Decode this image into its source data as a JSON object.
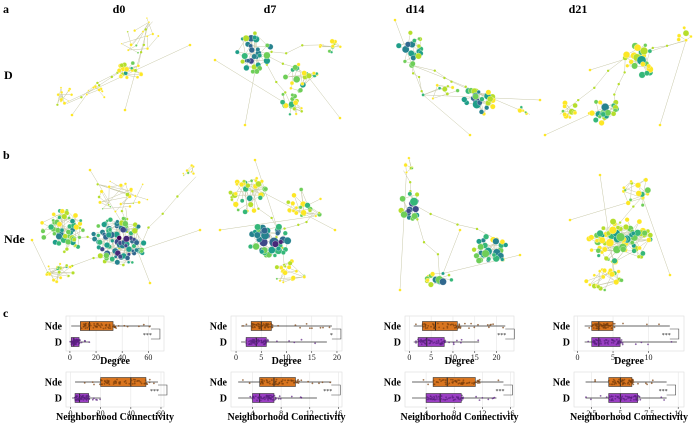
{
  "panels": {
    "a": "a",
    "b": "b",
    "c": "c"
  },
  "columns": [
    "d0",
    "d7",
    "d14",
    "d21"
  ],
  "rows": {
    "network_top": "D",
    "network_bottom": "Nde"
  },
  "box_groups": [
    "Nde",
    "D"
  ],
  "colors": {
    "nde_box": "#d9751f",
    "d_box": "#9b3fc4",
    "nde_point": "#7a3e0c",
    "d_point": "#5a1f80",
    "node_palette": [
      "#fde725",
      "#b5de2b",
      "#6ece58",
      "#35b779",
      "#1f9e89",
      "#26828e",
      "#31688e",
      "#3e4989",
      "#482878",
      "#440154"
    ],
    "edge": "#c8c8a8"
  },
  "chart_data": [
    {
      "type": "box",
      "column": "d0",
      "metric": "Degree",
      "xlabel": "Degree",
      "ticks": [
        0,
        20,
        40,
        60
      ],
      "xlim": [
        -3,
        72
      ],
      "series": [
        {
          "name": "Nde",
          "q1": 8,
          "median": 15,
          "q3": 33,
          "whisker_low": 1,
          "whisker_high": 62
        },
        {
          "name": "D",
          "q1": 1,
          "median": 3,
          "q3": 7,
          "whisker_low": 0,
          "whisker_high": 15
        }
      ],
      "significance": "***"
    },
    {
      "type": "box",
      "column": "d7",
      "metric": "Degree",
      "xlabel": "Degree",
      "ticks": [
        0,
        5,
        10,
        15,
        20
      ],
      "xlim": [
        -1,
        21
      ],
      "series": [
        {
          "name": "Nde",
          "q1": 3,
          "median": 5,
          "q3": 7,
          "whisker_low": 1,
          "whisker_high": 19
        },
        {
          "name": "D",
          "q1": 2,
          "median": 4,
          "q3": 6,
          "whisker_low": 1,
          "whisker_high": 18
        }
      ],
      "significance": "*"
    },
    {
      "type": "box",
      "column": "d14",
      "metric": "Degree",
      "xlabel": "Degree",
      "ticks": [
        0,
        5,
        10,
        15,
        20
      ],
      "xlim": [
        -1,
        24
      ],
      "series": [
        {
          "name": "Nde",
          "q1": 3,
          "median": 6,
          "q3": 11,
          "whisker_low": 1,
          "whisker_high": 22
        },
        {
          "name": "D",
          "q1": 2,
          "median": 4,
          "q3": 8,
          "whisker_low": 1,
          "whisker_high": 16
        }
      ],
      "significance": "***"
    },
    {
      "type": "box",
      "column": "d21",
      "metric": "Degree",
      "xlabel": "Degree",
      "ticks": [
        0,
        5,
        10
      ],
      "xlim": [
        -0.5,
        15
      ],
      "series": [
        {
          "name": "Nde",
          "q1": 2,
          "median": 3,
          "q3": 5,
          "whisker_low": 1,
          "whisker_high": 13
        },
        {
          "name": "D",
          "q1": 2,
          "median": 3,
          "q3": 6,
          "whisker_low": 1,
          "whisker_high": 14
        }
      ],
      "significance": "***"
    },
    {
      "type": "box",
      "column": "d0",
      "metric": "Neighborhood Connectivity",
      "xlabel": "Neighborhood Connectivity",
      "ticks": [
        0,
        20,
        40,
        60
      ],
      "xlim": [
        -3,
        62
      ],
      "series": [
        {
          "name": "Nde",
          "q1": 20,
          "median": 40,
          "q3": 50,
          "whisker_low": 3,
          "whisker_high": 58
        },
        {
          "name": "D",
          "q1": 3,
          "median": 6,
          "q3": 12,
          "whisker_low": 1,
          "whisker_high": 20
        }
      ],
      "significance": "***"
    },
    {
      "type": "box",
      "column": "d7",
      "metric": "Neighborhood Connectivity",
      "xlabel": "Neighborhood Connectivity",
      "ticks": [
        4,
        8,
        12,
        16
      ],
      "xlim": [
        1,
        16.5
      ],
      "series": [
        {
          "name": "Nde",
          "q1": 5,
          "median": 7,
          "q3": 10,
          "whisker_low": 2,
          "whisker_high": 15
        },
        {
          "name": "D",
          "q1": 4,
          "median": 5,
          "q3": 7,
          "whisker_low": 2,
          "whisker_high": 13
        }
      ],
      "significance": "***"
    },
    {
      "type": "box",
      "column": "d14",
      "metric": "Neighborhood Connectivity",
      "xlabel": "Neighborhood Connectivity",
      "ticks": [
        4,
        8,
        12,
        16
      ],
      "xlim": [
        1,
        16.5
      ],
      "series": [
        {
          "name": "Nde",
          "q1": 5,
          "median": 7,
          "q3": 11,
          "whisker_low": 2,
          "whisker_high": 15
        },
        {
          "name": "D",
          "q1": 4,
          "median": 6,
          "q3": 9,
          "whisker_low": 2,
          "whisker_high": 14
        }
      ],
      "significance": "***"
    },
    {
      "type": "box",
      "column": "d21",
      "metric": "Neighborhood Connectivity",
      "xlabel": "Neighborhood Connectivity",
      "ticks": [
        2.5,
        5.0,
        7.5,
        10.0
      ],
      "xlim": [
        1,
        10.5
      ],
      "series": [
        {
          "name": "Nde",
          "q1": 4,
          "median": 5,
          "q3": 6,
          "whisker_low": 2,
          "whisker_high": 9
        },
        {
          "name": "D",
          "q1": 4,
          "median": 5,
          "q3": 6.5,
          "whisker_low": 2,
          "whisker_high": 9
        }
      ],
      "significance": "***"
    }
  ]
}
